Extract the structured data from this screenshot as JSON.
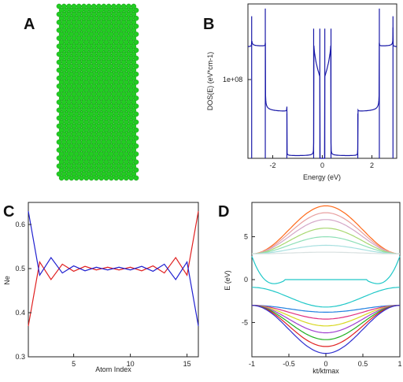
{
  "panels": [
    {
      "letter": "A"
    },
    {
      "letter": "B"
    },
    {
      "letter": "C"
    },
    {
      "letter": "D"
    }
  ],
  "colors": {
    "atom": "#22cc22",
    "dos_line": "#1a1aa8",
    "red": "#e02020",
    "blue": "#2020d0"
  },
  "chart_data": [
    {
      "panel": "A",
      "type": "scatter",
      "description_only": false,
      "atoms": {
        "columns": 16,
        "rows": 44,
        "pattern": "triangular"
      }
    },
    {
      "panel": "B",
      "type": "line",
      "xlabel": "Energy (eV)",
      "ylabel": "DOS(E) (eV*cm-1)",
      "xlim": [
        -3,
        3
      ],
      "xticks": [
        "-2",
        "0",
        "2"
      ],
      "xtick_values": [
        -2,
        0,
        2
      ],
      "ytick_label": "1e+08",
      "yscale": "log",
      "van_hove_peaks_x": [
        -2.85,
        -2.3,
        -1.43,
        -0.35,
        -0.1,
        0.1,
        0.35,
        1.43,
        2.3,
        2.85
      ]
    },
    {
      "panel": "C",
      "type": "line",
      "xlabel": "Atom Index",
      "ylabel": "Ne",
      "xlim": [
        1,
        16
      ],
      "ylim": [
        0.3,
        0.65
      ],
      "xticks": [
        5,
        10,
        15
      ],
      "yticks": [
        0.3,
        0.4,
        0.5,
        0.6
      ],
      "x": [
        1,
        2,
        3,
        4,
        5,
        6,
        7,
        8,
        9,
        10,
        11,
        12,
        13,
        14,
        15,
        16
      ],
      "series": [
        {
          "color": "#e02020",
          "values": [
            0.37,
            0.515,
            0.475,
            0.51,
            0.494,
            0.505,
            0.497,
            0.503,
            0.497,
            0.503,
            0.495,
            0.506,
            0.49,
            0.525,
            0.485,
            0.63
          ]
        },
        {
          "color": "#2020d0",
          "values": [
            0.63,
            0.485,
            0.525,
            0.49,
            0.506,
            0.495,
            0.503,
            0.497,
            0.503,
            0.497,
            0.505,
            0.494,
            0.51,
            0.475,
            0.515,
            0.37
          ]
        }
      ]
    },
    {
      "panel": "D",
      "type": "line",
      "xlabel": "kt/ktmax",
      "ylabel": "E (eV)",
      "xlim": [
        -1,
        1
      ],
      "ylim": [
        -9,
        9
      ],
      "xticks": [
        "-1",
        "-0.5",
        "0",
        "0.5",
        "1"
      ],
      "xtick_values": [
        -1,
        -0.5,
        0,
        0.5,
        1
      ],
      "yticks": [
        "-5",
        "0",
        "5"
      ],
      "ytick_values": [
        -5,
        0,
        5
      ],
      "bands_conduction": [
        {
          "color": "#ff6a1a",
          "center": 8.6,
          "edge": 3.0
        },
        {
          "color": "#e8a0a0",
          "center": 7.8,
          "edge": 3.0
        },
        {
          "color": "#d4a7c8",
          "center": 7.0,
          "edge": 3.0
        },
        {
          "color": "#a8d870",
          "center": 6.0,
          "edge": 3.0
        },
        {
          "color": "#8fe0b8",
          "center": 5.0,
          "edge": 3.0
        },
        {
          "color": "#a8e0e0",
          "center": 4.0,
          "edge": 3.0
        },
        {
          "color": "#d8e0e0",
          "center": 3.2,
          "edge": 3.0
        }
      ],
      "edge_bands": [
        {
          "color": "#20c8c8",
          "center": 1.2,
          "edge": 0.0
        }
      ],
      "bands_valence": [
        {
          "color": "#20c8c8",
          "center": -3.2,
          "edge": -0.9
        },
        {
          "color": "#2080e0",
          "center": -3.8,
          "edge": -3.0
        },
        {
          "color": "#e03080",
          "center": -4.6,
          "edge": -3.0
        },
        {
          "color": "#d8d820",
          "center": -5.4,
          "edge": -3.0
        },
        {
          "color": "#a040d0",
          "center": -6.2,
          "edge": -3.0
        },
        {
          "color": "#20b020",
          "center": -7.0,
          "edge": -3.0
        },
        {
          "color": "#e02020",
          "center": -7.8,
          "edge": -3.0
        },
        {
          "color": "#3030d0",
          "center": -8.6,
          "edge": -3.0
        }
      ]
    }
  ]
}
